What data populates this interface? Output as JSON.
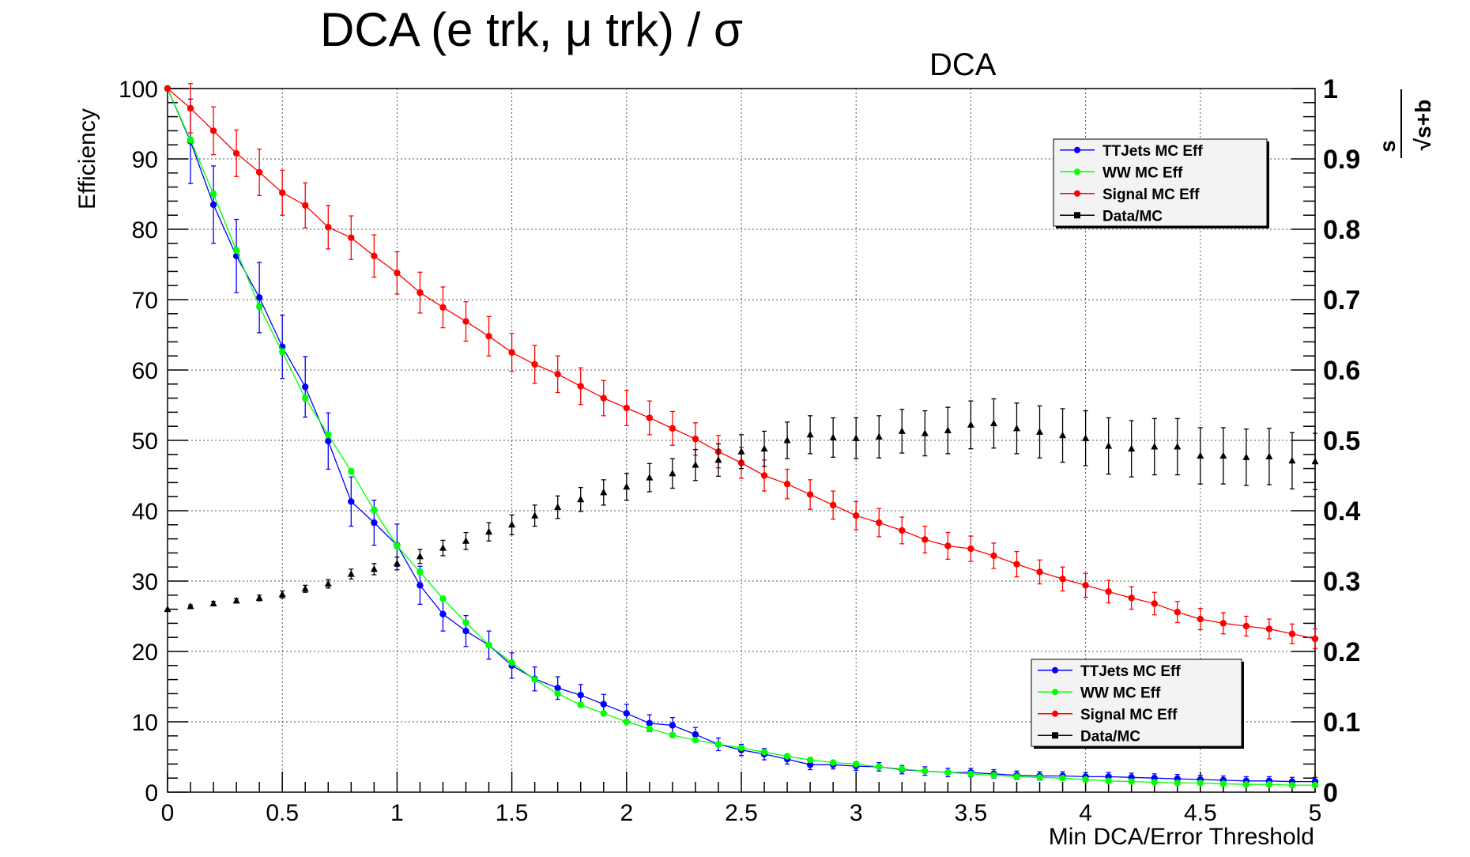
{
  "chart_data": {
    "type": "line",
    "title": {
      "main": "DCA (e trk, μ trk) / σ",
      "subscript": "DCA"
    },
    "xlabel": "Min DCA/Error Threshold",
    "ylabel": "Efficiency",
    "y2label": {
      "numerator": "s",
      "denominator": "√s+b"
    },
    "xlim": [
      0,
      5
    ],
    "ylim": [
      0,
      100
    ],
    "y2lim": [
      0,
      1
    ],
    "grid": true,
    "x_ticks": [
      {
        "value": 0,
        "label": "0"
      },
      {
        "value": 0.5,
        "label": "0.5"
      },
      {
        "value": 1,
        "label": "1"
      },
      {
        "value": 1.5,
        "label": "1.5"
      },
      {
        "value": 2,
        "label": "2"
      },
      {
        "value": 2.5,
        "label": "2.5"
      },
      {
        "value": 3,
        "label": "3"
      },
      {
        "value": 3.5,
        "label": "3.5"
      },
      {
        "value": 4,
        "label": "4"
      },
      {
        "value": 4.5,
        "label": "4.5"
      },
      {
        "value": 5,
        "label": "5"
      }
    ],
    "y_ticks": [
      {
        "value": 0,
        "label": "0"
      },
      {
        "value": 10,
        "label": "10"
      },
      {
        "value": 20,
        "label": "20"
      },
      {
        "value": 30,
        "label": "30"
      },
      {
        "value": 40,
        "label": "40"
      },
      {
        "value": 50,
        "label": "50"
      },
      {
        "value": 60,
        "label": "60"
      },
      {
        "value": 70,
        "label": "70"
      },
      {
        "value": 80,
        "label": "80"
      },
      {
        "value": 90,
        "label": "90"
      },
      {
        "value": 100,
        "label": "100"
      }
    ],
    "y2_ticks": [
      {
        "value": 0,
        "label": "0"
      },
      {
        "value": 0.1,
        "label": "0.1"
      },
      {
        "value": 0.2,
        "label": "0.2"
      },
      {
        "value": 0.3,
        "label": "0.3"
      },
      {
        "value": 0.4,
        "label": "0.4"
      },
      {
        "value": 0.5,
        "label": "0.5"
      },
      {
        "value": 0.6,
        "label": "0.6"
      },
      {
        "value": 0.7,
        "label": "0.7"
      },
      {
        "value": 0.8,
        "label": "0.8"
      },
      {
        "value": 0.9,
        "label": "0.9"
      },
      {
        "value": 1,
        "label": "1"
      }
    ],
    "x": [
      0,
      0.1,
      0.2,
      0.3,
      0.4,
      0.5,
      0.6,
      0.7,
      0.8,
      0.9,
      1,
      1.1,
      1.2,
      1.3,
      1.4,
      1.5,
      1.6,
      1.7,
      1.8,
      1.9,
      2,
      2.1,
      2.2,
      2.3,
      2.4,
      2.5,
      2.6,
      2.7,
      2.8,
      2.9,
      3,
      3.1,
      3.2,
      3.3,
      3.4,
      3.5,
      3.6,
      3.7,
      3.8,
      3.9,
      4,
      4.1,
      4.2,
      4.3,
      4.4,
      4.5,
      4.6,
      4.7,
      4.8,
      4.9,
      5
    ],
    "series": [
      {
        "name": "TTJets MC Eff",
        "color": "#0000ff",
        "marker": "circle",
        "axis": "left",
        "values": [
          100,
          92.5,
          83.5,
          76.2,
          70.3,
          63.3,
          57.6,
          49.9,
          41.3,
          38.3,
          35.1,
          29.4,
          25.3,
          22.9,
          20.9,
          18.0,
          16.1,
          14.8,
          13.8,
          12.5,
          11.2,
          9.8,
          9.5,
          8.2,
          6.8,
          6.0,
          5.4,
          4.7,
          3.9,
          3.9,
          3.7,
          3.6,
          3.2,
          3.0,
          2.8,
          2.8,
          2.6,
          2.4,
          2.3,
          2.3,
          2.2,
          2.2,
          2.1,
          2.0,
          1.9,
          1.8,
          1.7,
          1.6,
          1.6,
          1.5,
          1.5
        ],
        "errors": [
          0,
          6.0,
          5.5,
          5.2,
          5.0,
          4.5,
          4.3,
          4.0,
          3.5,
          3.2,
          3.0,
          2.7,
          2.4,
          2.2,
          2.0,
          1.8,
          1.7,
          1.6,
          1.5,
          1.4,
          1.3,
          1.2,
          1.1,
          1.0,
          0.9,
          0.8,
          0.8,
          0.7,
          0.7,
          0.6,
          0.6,
          0.6,
          0.6,
          0.6,
          0.6,
          0.6,
          0.6,
          0.6,
          0.6,
          0.6,
          0.6,
          0.6,
          0.6,
          0.6,
          0.6,
          0.6,
          0.6,
          0.6,
          0.6,
          0.6,
          0.6
        ]
      },
      {
        "name": "WW MC Eff",
        "color": "#00ff00",
        "marker": "circle",
        "axis": "left",
        "values": [
          100,
          92.7,
          85.0,
          77.0,
          69.0,
          62.6,
          56.0,
          50.8,
          45.6,
          40.1,
          35.0,
          31.3,
          27.5,
          24.1,
          20.9,
          18.4,
          16.0,
          14.0,
          12.4,
          11.2,
          10.0,
          9.0,
          8.1,
          7.4,
          6.8,
          6.3,
          5.7,
          5.1,
          4.6,
          4.2,
          4.0,
          3.6,
          3.3,
          3.0,
          2.8,
          2.6,
          2.4,
          2.2,
          2.1,
          2.0,
          1.8,
          1.6,
          1.5,
          1.4,
          1.3,
          1.3,
          1.2,
          1.1,
          1.1,
          1.0,
          1.0
        ],
        "errors": [
          0,
          0.4,
          0.4,
          0.4,
          0.4,
          0.4,
          0.4,
          0.4,
          0.4,
          0.4,
          0.4,
          0.4,
          0.3,
          0.3,
          0.3,
          0.3,
          0.3,
          0.3,
          0.3,
          0.3,
          0.3,
          0.2,
          0.2,
          0.2,
          0.2,
          0.2,
          0.2,
          0.2,
          0.2,
          0.2,
          0.2,
          0.2,
          0.2,
          0.2,
          0.2,
          0.2,
          0.2,
          0.2,
          0.2,
          0.2,
          0.2,
          0.2,
          0.2,
          0.2,
          0.2,
          0.2,
          0.2,
          0.2,
          0.2,
          0.2,
          0.2
        ]
      },
      {
        "name": "Signal MC Eff",
        "color": "#ff0000",
        "marker": "circle",
        "axis": "left",
        "values": [
          100,
          97.2,
          94.0,
          90.8,
          88.1,
          85.2,
          83.4,
          80.3,
          78.8,
          76.2,
          73.8,
          71.0,
          68.9,
          66.9,
          64.8,
          62.5,
          60.8,
          59.4,
          57.7,
          56.0,
          54.6,
          53.2,
          51.7,
          50.2,
          48.4,
          46.8,
          45.0,
          43.8,
          42.3,
          40.8,
          39.3,
          38.3,
          37.2,
          35.9,
          35.0,
          34.6,
          33.6,
          32.4,
          31.3,
          30.3,
          29.4,
          28.5,
          27.6,
          26.8,
          25.6,
          24.6,
          24.0,
          23.6,
          23.2,
          22.5,
          21.8
        ],
        "errors": [
          0,
          3.5,
          3.4,
          3.3,
          3.3,
          3.2,
          3.2,
          3.1,
          3.1,
          3.0,
          3.0,
          2.9,
          2.9,
          2.8,
          2.8,
          2.7,
          2.7,
          2.6,
          2.6,
          2.5,
          2.5,
          2.4,
          2.4,
          2.3,
          2.3,
          2.2,
          2.2,
          2.1,
          2.1,
          2.0,
          2.0,
          2.0,
          1.9,
          1.9,
          1.9,
          1.8,
          1.8,
          1.8,
          1.7,
          1.7,
          1.7,
          1.6,
          1.6,
          1.6,
          1.5,
          1.5,
          1.5,
          1.4,
          1.4,
          1.4,
          1.4
        ]
      },
      {
        "name": "Data/MC",
        "color": "#000000",
        "marker": "triangle",
        "axis": "right",
        "values": [
          0.26,
          0.264,
          0.268,
          0.272,
          0.276,
          0.281,
          0.289,
          0.296,
          0.31,
          0.317,
          0.325,
          0.335,
          0.347,
          0.357,
          0.37,
          0.38,
          0.393,
          0.405,
          0.416,
          0.426,
          0.434,
          0.447,
          0.453,
          0.465,
          0.472,
          0.484,
          0.488,
          0.5,
          0.508,
          0.504,
          0.503,
          0.505,
          0.513,
          0.51,
          0.514,
          0.522,
          0.524,
          0.517,
          0.512,
          0.507,
          0.503,
          0.492,
          0.488,
          0.491,
          0.491,
          0.478,
          0.478,
          0.476,
          0.477,
          0.471,
          0.47
        ],
        "errors": [
          0,
          0.002,
          0.003,
          0.003,
          0.004,
          0.005,
          0.005,
          0.006,
          0.007,
          0.008,
          0.009,
          0.01,
          0.011,
          0.012,
          0.013,
          0.014,
          0.015,
          0.016,
          0.017,
          0.018,
          0.019,
          0.02,
          0.021,
          0.022,
          0.023,
          0.024,
          0.025,
          0.026,
          0.027,
          0.028,
          0.029,
          0.03,
          0.031,
          0.032,
          0.033,
          0.034,
          0.035,
          0.036,
          0.037,
          0.038,
          0.039,
          0.04,
          0.04,
          0.04,
          0.04,
          0.04,
          0.04,
          0.04,
          0.04,
          0.04,
          0.04
        ]
      }
    ],
    "legend_placement": [
      "upper-right",
      "lower-right"
    ]
  }
}
